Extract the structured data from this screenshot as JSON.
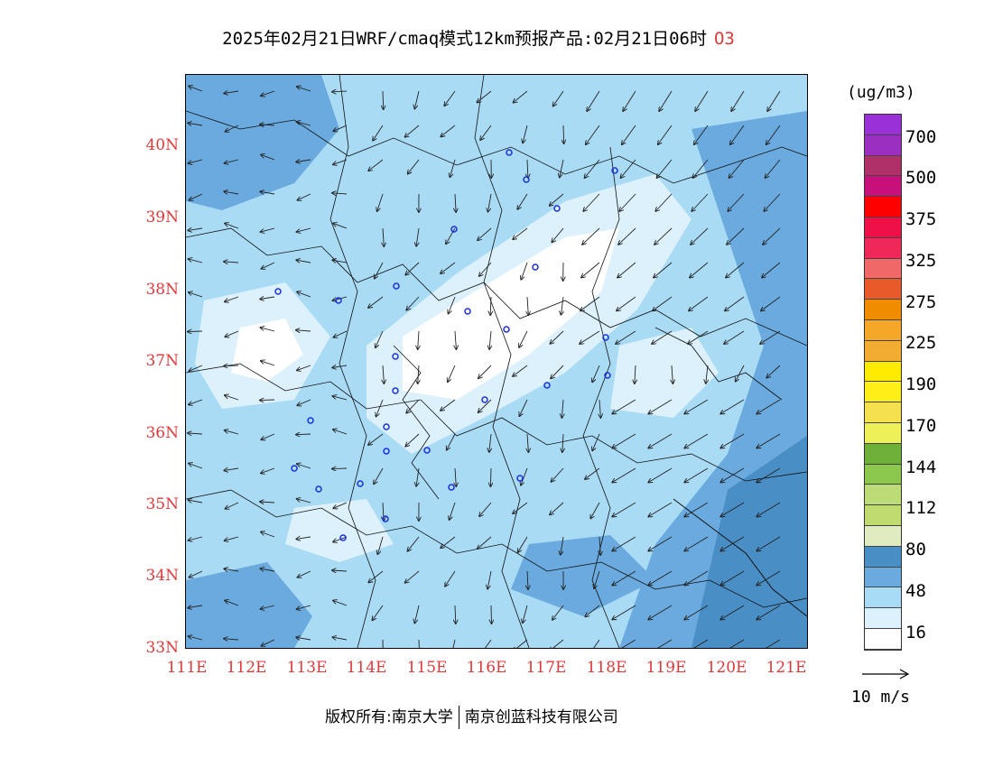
{
  "title": {
    "main": "2025年02月21日WRF/cmaq模式12km预报产品:02月21日06时",
    "pollutant": "O3"
  },
  "map": {
    "lat_labels": [
      "40N",
      "39N",
      "38N",
      "37N",
      "36N",
      "35N",
      "34N",
      "33N"
    ],
    "lon_labels": [
      "111E",
      "112E",
      "113E",
      "114E",
      "115E",
      "116E",
      "117E",
      "118E",
      "119E",
      "120E",
      "121E"
    ]
  },
  "legend": {
    "unit": "(ug/m3)",
    "colors": [
      "#9a30d8",
      "#9b30c0",
      "#b0306a",
      "#c8107a",
      "#ff0000",
      "#f01048",
      "#f0285a",
      "#f06868",
      "#e85a2a",
      "#f08c00",
      "#f5a828",
      "#f3ac32",
      "#ffeb00",
      "#ffee18",
      "#f5e050",
      "#eef05a",
      "#6eb03a",
      "#8cc84e",
      "#bcdc78",
      "#c0dc70",
      "#e0ecc0",
      "#4a8ec6",
      "#6aaade",
      "#a8dcf6",
      "#dcf1fc",
      "#ffffff"
    ],
    "labels": [
      "700",
      "500",
      "375",
      "325",
      "275",
      "225",
      "190",
      "170",
      "144",
      "112",
      "80",
      "48",
      "16"
    ]
  },
  "wind_reference": {
    "label": "10 m/s"
  },
  "footer": {
    "left": "版权所有:南京大学",
    "right": "南京创蓝科技有限公司"
  }
}
